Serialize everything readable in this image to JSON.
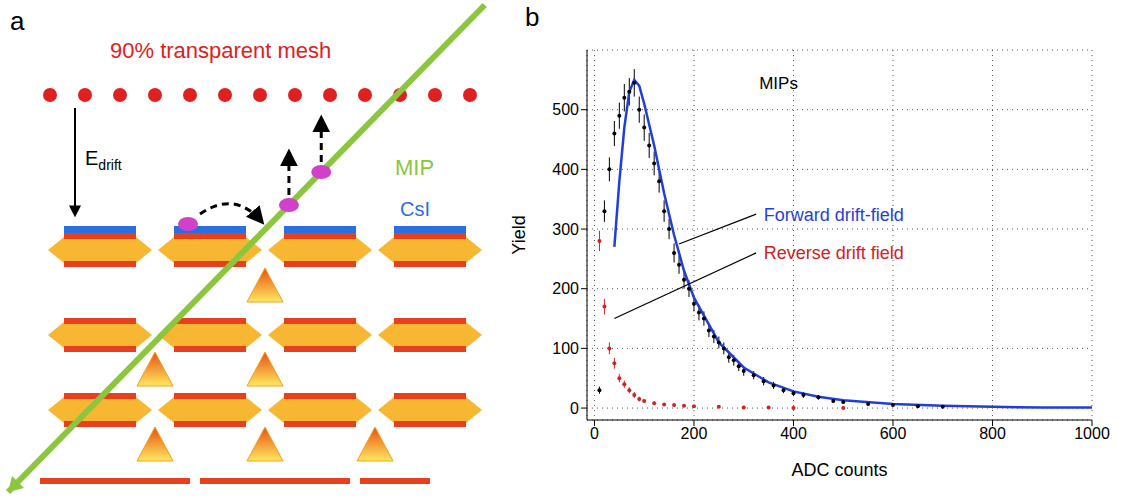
{
  "diagram": {
    "letter": "a",
    "mesh_label": "90% transparent mesh",
    "field": {
      "text": "E",
      "subscript": "drift"
    },
    "track_label": "MIP",
    "photocathode_label": "CsI"
  },
  "chart_data": {
    "type": "scatter",
    "label": "b",
    "title": "MIPs",
    "x_label": "ADC counts",
    "y_label": "Yield",
    "xlim": [
      -15,
      1000
    ],
    "xticks": [
      0,
      200,
      400,
      600,
      800,
      1000
    ],
    "ylim": [
      -20,
      600
    ],
    "yticks": [
      0,
      100,
      200,
      300,
      400,
      500
    ],
    "grid": true,
    "series": [
      {
        "type": "scatter",
        "color": "#000000",
        "marker": "point",
        "x": [
          10,
          20,
          30,
          40,
          50,
          60,
          70,
          80,
          90,
          100,
          110,
          120,
          130,
          140,
          150,
          160,
          170,
          180,
          190,
          200,
          210,
          220,
          230,
          240,
          250,
          260,
          270,
          280,
          290,
          300,
          320,
          340,
          360,
          380,
          400,
          420,
          450,
          480,
          500,
          550,
          600,
          650,
          700
        ],
        "values": [
          30,
          330,
          400,
          460,
          490,
          520,
          530,
          545,
          500,
          470,
          440,
          410,
          380,
          330,
          300,
          260,
          240,
          215,
          200,
          175,
          160,
          150,
          130,
          120,
          110,
          100,
          85,
          80,
          70,
          62,
          55,
          45,
          38,
          30,
          25,
          22,
          18,
          12,
          10,
          7,
          5,
          3,
          2
        ],
        "errors": [
          6,
          18,
          20,
          21,
          22,
          23,
          23,
          23,
          22,
          22,
          21,
          20,
          19,
          18,
          17,
          16,
          15,
          15,
          14,
          13,
          13,
          12,
          11,
          11,
          10,
          10,
          9,
          9,
          8,
          8,
          7,
          7,
          6,
          5,
          5,
          5,
          4,
          3,
          3,
          3,
          2,
          2,
          1
        ]
      },
      {
        "type": "line",
        "name": "Forward drift-field",
        "color": "#1f3fd8",
        "line_style": "solid",
        "x": [
          40,
          50,
          60,
          70,
          80,
          90,
          100,
          120,
          140,
          160,
          180,
          200,
          250,
          300,
          350,
          400,
          450,
          500,
          600,
          700,
          800,
          900,
          1000
        ],
        "values": [
          270,
          380,
          470,
          530,
          550,
          540,
          510,
          440,
          360,
          290,
          230,
          185,
          110,
          68,
          43,
          28,
          19,
          13,
          7,
          4,
          2,
          1,
          1
        ]
      },
      {
        "type": "scatter",
        "name": "Reverse drift field",
        "color": "#d42020",
        "marker": "point",
        "x": [
          10,
          20,
          30,
          40,
          50,
          60,
          70,
          80,
          90,
          100,
          120,
          140,
          160,
          180,
          200,
          250,
          300,
          350,
          400,
          500
        ],
        "values": [
          280,
          170,
          100,
          75,
          50,
          40,
          30,
          22,
          15,
          12,
          8,
          6,
          5,
          4,
          3,
          2,
          1,
          1,
          0,
          0
        ],
        "errors": [
          17,
          13,
          10,
          9,
          7,
          6,
          5,
          5,
          4,
          3,
          3,
          2,
          2,
          2,
          2,
          1,
          1,
          1,
          1,
          1
        ]
      }
    ]
  }
}
